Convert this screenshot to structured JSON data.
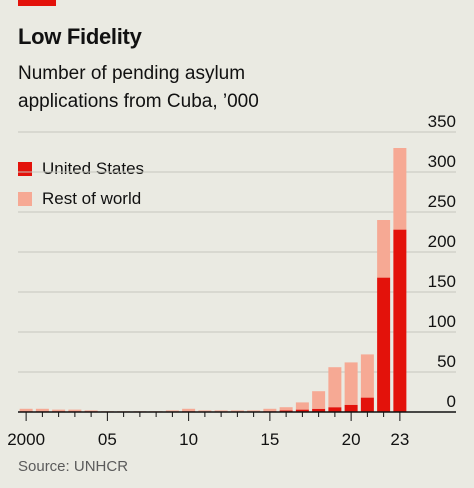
{
  "header": {
    "title": "Low Fidelity",
    "subtitle": "Number of pending asylum applications from Cuba, ’000"
  },
  "footer": {
    "source": "Source: UNHCR"
  },
  "colors": {
    "united_states": "#e3120b",
    "rest_of_world": "#f6a994",
    "accent": "#e3120b"
  },
  "chart_data": {
    "type": "bar",
    "stacked": true,
    "title": "Low Fidelity",
    "subtitle": "Number of pending asylum applications from Cuba, ’000",
    "x": [
      2000,
      2001,
      2002,
      2003,
      2004,
      2005,
      2006,
      2007,
      2008,
      2009,
      2010,
      2011,
      2012,
      2013,
      2014,
      2015,
      2016,
      2017,
      2018,
      2019,
      2020,
      2021,
      2022,
      2023
    ],
    "x_tick_labels": [
      {
        "x": 2000,
        "label": "2000"
      },
      {
        "x": 2005,
        "label": "05"
      },
      {
        "x": 2010,
        "label": "10"
      },
      {
        "x": 2015,
        "label": "15"
      },
      {
        "x": 2020,
        "label": "20"
      },
      {
        "x": 2023,
        "label": "23"
      }
    ],
    "y_ticks": [
      0,
      50,
      100,
      150,
      200,
      250,
      300,
      350
    ],
    "ylim": [
      0,
      350
    ],
    "y_axis_side": "right",
    "grid": true,
    "legend_position": "top-left",
    "series": [
      {
        "name": "United States",
        "values": [
          1,
          1,
          1,
          1,
          1,
          0,
          0,
          0,
          0,
          0,
          1,
          0,
          0,
          0,
          0,
          1,
          2,
          3,
          4,
          6,
          9,
          18,
          168,
          228
        ]
      },
      {
        "name": "Rest of world",
        "values": [
          3,
          3,
          2,
          2,
          1,
          1,
          1,
          1,
          1,
          2,
          3,
          2,
          2,
          2,
          2,
          3,
          4,
          9,
          22,
          50,
          53,
          54,
          72,
          102
        ]
      }
    ]
  }
}
